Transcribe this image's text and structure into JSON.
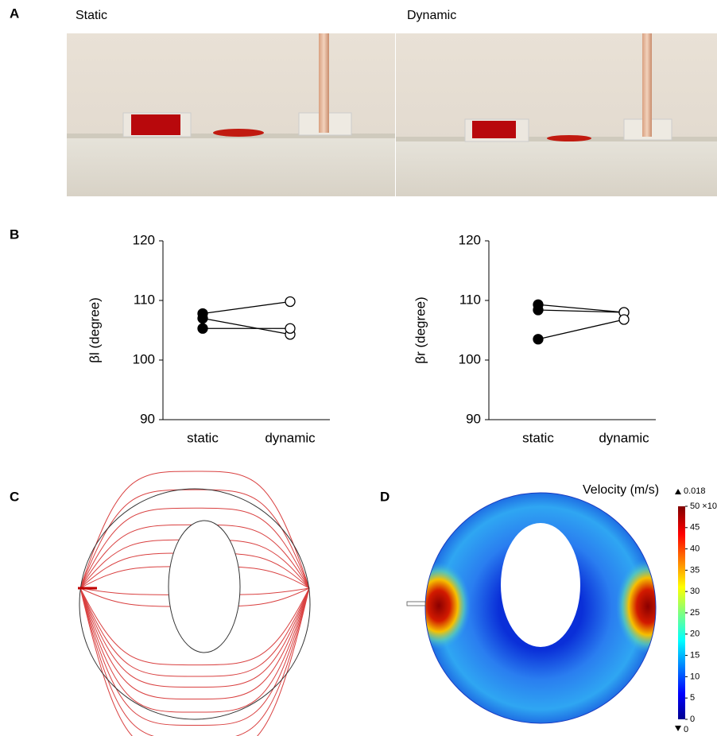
{
  "panel_labels": [
    "A",
    "B",
    "C",
    "D"
  ],
  "photos": [
    "Static",
    "Dynamic"
  ],
  "chart_data": [
    {
      "type": "line",
      "y_label": "βl (degree)",
      "categories": [
        "static",
        "dynamic"
      ],
      "ylim": [
        90,
        120
      ],
      "yticks": [
        90,
        100,
        110,
        120
      ],
      "marker_fills": [
        "#000000",
        "#ffffff"
      ],
      "color": "#000000",
      "series": [
        {
          "values": [
            107.8,
            109.8
          ]
        },
        {
          "values": [
            107.0,
            104.3
          ]
        },
        {
          "values": [
            105.3,
            105.3
          ]
        }
      ]
    },
    {
      "type": "line",
      "y_label": "βr (degree)",
      "categories": [
        "static",
        "dynamic"
      ],
      "ylim": [
        90,
        120
      ],
      "yticks": [
        90,
        100,
        110,
        120
      ],
      "marker_fills": [
        "#000000",
        "#ffffff"
      ],
      "color": "#000000",
      "series": [
        {
          "values": [
            109.3,
            108.0
          ]
        },
        {
          "values": [
            108.4,
            108.0
          ]
        },
        {
          "values": [
            103.5,
            106.8
          ]
        }
      ]
    }
  ],
  "colorbar": {
    "title": "Velocity (m/s)",
    "max": 0.018,
    "min": 0,
    "lim": [
      0,
      50
    ],
    "ticks": [
      0,
      5,
      10,
      15,
      20,
      25,
      30,
      35,
      40,
      45,
      {
        "value": 50,
        "label": "50 ×10"
      }
    ]
  }
}
